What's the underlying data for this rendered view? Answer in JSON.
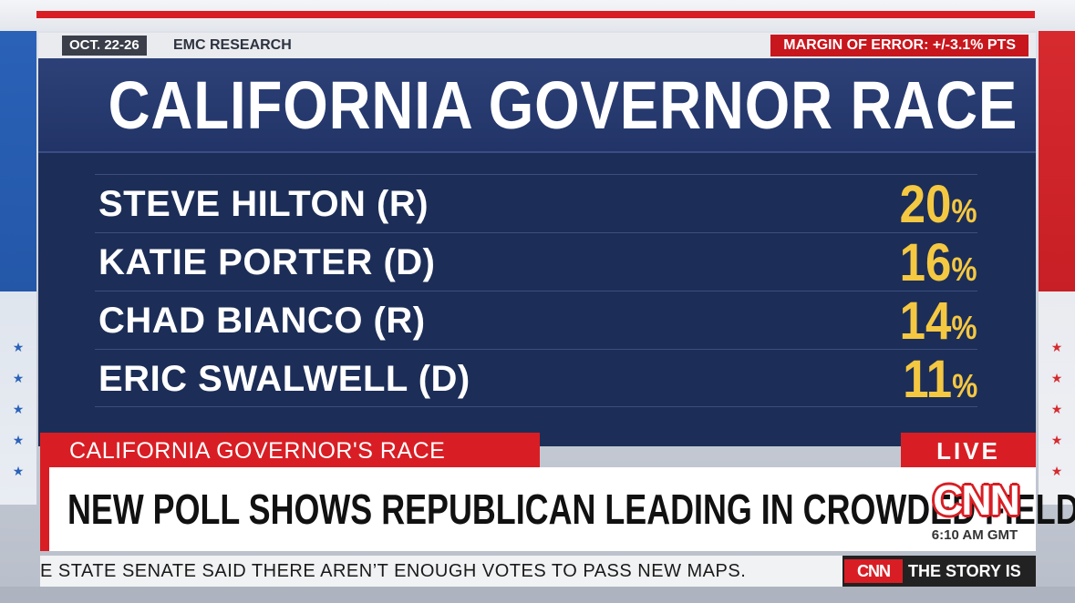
{
  "graphic": {
    "poll_dates": "OCT. 22-26",
    "poll_source": "EMC RESEARCH",
    "margin_of_error": "MARGIN OF ERROR: +/-3.1% PTS",
    "title": "CALIFORNIA GOVERNOR RACE",
    "candidates": [
      {
        "name": "STEVE HILTON (R)",
        "value": "20",
        "unit": "%"
      },
      {
        "name": "KATIE PORTER (D)",
        "value": "16",
        "unit": "%"
      },
      {
        "name": "CHAD BIANCO (R)",
        "value": "14",
        "unit": "%"
      },
      {
        "name": "ERIC SWALWELL (D)",
        "value": "11",
        "unit": "%"
      }
    ],
    "colors": {
      "board": "#1c2e57",
      "accent_red": "#d81e24",
      "percent_yellow": "#f5c842"
    }
  },
  "lower_third": {
    "topic": "CALIFORNIA GOVERNOR'S RACE",
    "live": "LIVE",
    "headline": "NEW POLL SHOWS REPUBLICAN LEADING IN CROWDED FIELD",
    "logo": "CNN",
    "time": "6:10 AM GMT"
  },
  "ticker": {
    "text": "E STATE SENATE SAID THERE AREN’T ENOUGH VOTES TO PASS NEW MAPS.",
    "logo": "CNN",
    "label": "THE STORY IS"
  },
  "decor": {
    "star_glyph": "★"
  }
}
